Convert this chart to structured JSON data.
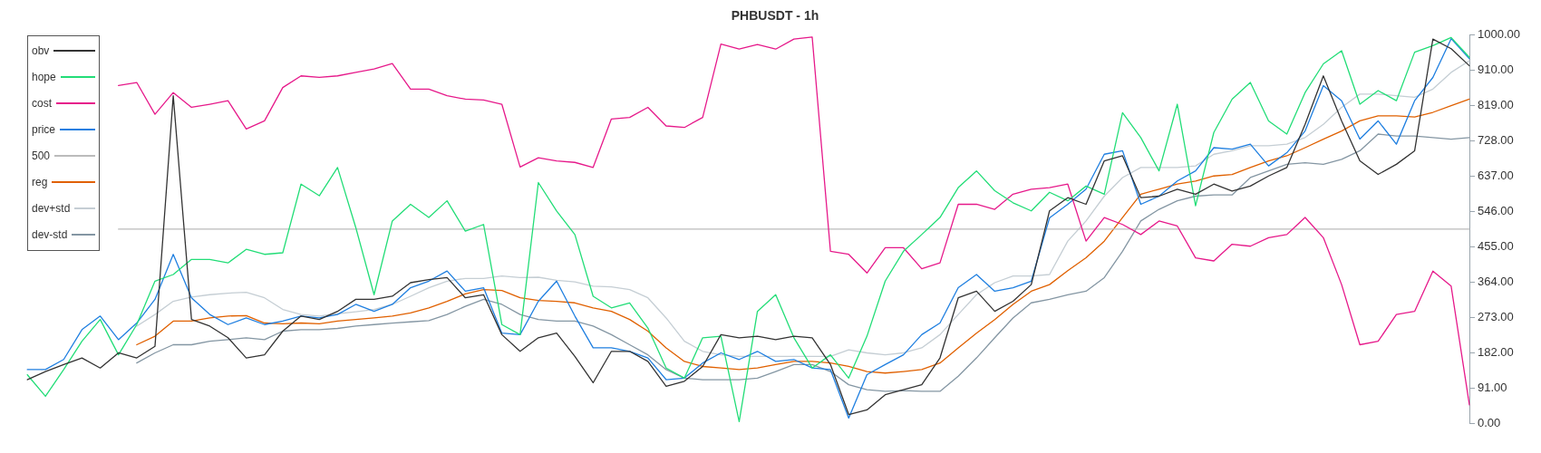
{
  "chart_data": {
    "type": "line",
    "title": "PHBUSDT - 1h",
    "categories": [
      null,
      null,
      null,
      null,
      null,
      null,
      null,
      null,
      null,
      null,
      null,
      null,
      null,
      null,
      null,
      null,
      null,
      null,
      null,
      null,
      null,
      null,
      null,
      null,
      null,
      null,
      null,
      null,
      null,
      null,
      null,
      null,
      null,
      null,
      null,
      null,
      null,
      null,
      null,
      null,
      null,
      null,
      null,
      null,
      null,
      null,
      null,
      null,
      null,
      null,
      null,
      null,
      null,
      null,
      null,
      null,
      null,
      null,
      null,
      null,
      null,
      null,
      null,
      null,
      null,
      null,
      null,
      null,
      null,
      null,
      null,
      null,
      null,
      null,
      null,
      null,
      null,
      null,
      null,
      null
    ],
    "series": [
      {
        "name": "obv",
        "color": "#333333",
        "values": [
          112,
          133,
          151,
          168,
          142,
          181,
          168,
          198,
          844,
          267,
          250,
          220,
          168,
          176,
          237,
          276,
          267,
          288,
          319,
          319,
          327,
          362,
          370,
          375,
          323,
          331,
          228,
          185,
          220,
          232,
          172,
          104,
          185,
          185,
          159,
          95,
          108,
          146,
          228,
          220,
          224,
          215,
          224,
          220,
          151,
          22,
          34,
          73,
          86,
          99,
          168,
          323,
          340,
          288,
          314,
          357,
          547,
          581,
          564,
          676,
          689,
          581,
          585,
          603,
          590,
          616,
          598,
          611,
          637,
          659,
          770,
          895,
          779,
          676,
          641,
          667,
          702,
          990,
          965,
          921
        ]
      },
      {
        "name": "hope",
        "color": "#22dd77",
        "values": [
          125,
          69,
          138,
          211,
          267,
          176,
          254,
          366,
          383,
          422,
          422,
          413,
          448,
          435,
          439,
          616,
          586,
          659,
          504,
          331,
          521,
          564,
          530,
          573,
          495,
          512,
          254,
          228,
          620,
          547,
          486,
          327,
          297,
          310,
          245,
          142,
          116,
          220,
          224,
          4,
          288,
          331,
          220,
          142,
          176,
          116,
          224,
          366,
          443,
          486,
          530,
          607,
          650,
          599,
          568,
          547,
          595,
          573,
          611,
          590,
          800,
          736,
          650,
          822,
          560,
          749,
          835,
          878,
          779,
          745,
          852,
          926,
          960,
          822,
          857,
          831,
          956,
          973,
          994,
          943
        ]
      },
      {
        "name": "cost",
        "color": "#e6198a",
        "values": [
          null,
          null,
          null,
          null,
          null,
          870,
          878,
          796,
          852,
          814,
          822,
          831,
          758,
          779,
          865,
          895,
          891,
          895,
          904,
          913,
          927,
          861,
          861,
          844,
          835,
          833,
          822,
          660,
          684,
          676,
          672,
          659,
          784,
          788,
          814,
          766,
          762,
          788,
          977,
          964,
          976,
          964,
          990,
          995,
          443,
          435,
          387,
          452,
          452,
          398,
          413,
          564,
          564,
          551,
          590,
          603,
          607,
          616,
          469,
          530,
          512,
          486,
          521,
          508,
          426,
          418,
          461,
          456,
          478,
          486,
          530,
          478,
          357,
          202,
          211,
          280,
          288,
          392,
          353,
          47
        ]
      },
      {
        "name": "price",
        "color": "#1f7fe0",
        "values": [
          138,
          138,
          164,
          241,
          276,
          215,
          258,
          319,
          435,
          323,
          280,
          254,
          271,
          254,
          263,
          276,
          271,
          280,
          306,
          288,
          306,
          349,
          366,
          392,
          340,
          349,
          232,
          228,
          314,
          366,
          276,
          194,
          194,
          185,
          168,
          112,
          116,
          155,
          181,
          164,
          185,
          159,
          164,
          142,
          138,
          13,
          125,
          151,
          176,
          228,
          258,
          349,
          383,
          340,
          349,
          366,
          529,
          564,
          603,
          693,
          702,
          564,
          585,
          624,
          650,
          710,
          706,
          719,
          663,
          697,
          753,
          870,
          831,
          732,
          779,
          719,
          831,
          891,
          991,
          939
        ]
      },
      {
        "name": "500",
        "color": "#bbbbbb",
        "values": [
          null,
          null,
          null,
          null,
          null,
          500,
          500,
          500,
          500,
          500,
          500,
          500,
          500,
          500,
          500,
          500,
          500,
          500,
          500,
          500,
          500,
          500,
          500,
          500,
          500,
          500,
          500,
          500,
          500,
          500,
          500,
          500,
          500,
          500,
          500,
          500,
          500,
          500,
          500,
          500,
          500,
          500,
          500,
          500,
          500,
          500,
          500,
          500,
          500,
          500,
          500,
          500,
          500,
          500,
          500,
          500,
          500,
          500,
          500,
          500,
          500,
          500,
          500,
          500,
          500,
          500,
          500,
          500,
          500,
          500,
          500,
          500,
          500,
          500,
          500,
          500,
          500,
          500,
          500,
          500
        ]
      },
      {
        "name": "reg",
        "color": "#e06000",
        "values": [
          null,
          null,
          null,
          null,
          null,
          null,
          202,
          224,
          263,
          263,
          271,
          276,
          277,
          258,
          256,
          258,
          256,
          263,
          267,
          271,
          276,
          284,
          297,
          314,
          333,
          344,
          342,
          323,
          316,
          314,
          310,
          297,
          288,
          267,
          237,
          194,
          159,
          146,
          142,
          138,
          142,
          151,
          159,
          159,
          155,
          146,
          133,
          129,
          133,
          138,
          155,
          194,
          232,
          267,
          306,
          340,
          357,
          393,
          426,
          469,
          530,
          590,
          603,
          616,
          624,
          637,
          641,
          659,
          676,
          689,
          710,
          732,
          753,
          779,
          792,
          792,
          789,
          801,
          818,
          835
        ]
      },
      {
        "name": "dev+std",
        "color": "#c5ced4",
        "values": [
          null,
          null,
          null,
          null,
          null,
          null,
          250,
          280,
          314,
          325,
          331,
          335,
          337,
          323,
          293,
          280,
          276,
          282,
          287,
          293,
          306,
          327,
          349,
          366,
          373,
          373,
          379,
          375,
          376,
          368,
          364,
          353,
          351,
          344,
          323,
          271,
          211,
          185,
          176,
          172,
          172,
          172,
          172,
          172,
          172,
          189,
          181,
          176,
          181,
          194,
          228,
          280,
          331,
          362,
          379,
          379,
          383,
          469,
          521,
          585,
          633,
          659,
          659,
          659,
          663,
          693,
          702,
          715,
          715,
          719,
          736,
          770,
          814,
          848,
          848,
          844,
          840,
          861,
          904,
          934
        ]
      },
      {
        "name": "dev-std",
        "color": "#8496a3",
        "values": [
          null,
          null,
          null,
          null,
          null,
          null,
          155,
          181,
          202,
          202,
          211,
          215,
          220,
          215,
          237,
          241,
          241,
          244,
          250,
          254,
          258,
          261,
          264,
          280,
          301,
          319,
          306,
          280,
          267,
          263,
          263,
          250,
          228,
          202,
          176,
          138,
          116,
          112,
          112,
          112,
          116,
          133,
          151,
          151,
          133,
          99,
          86,
          82,
          84,
          82,
          82,
          121,
          168,
          220,
          271,
          310,
          319,
          331,
          340,
          375,
          443,
          521,
          551,
          573,
          585,
          588,
          588,
          633,
          650,
          667,
          671,
          667,
          680,
          702,
          745,
          740,
          740,
          736,
          732,
          736
        ]
      }
    ],
    "ylim": [
      0,
      1000
    ],
    "yticks": [
      {
        "value": 0,
        "label": "0.00"
      },
      {
        "value": 91,
        "label": "91.00"
      },
      {
        "value": 182,
        "label": "182.00"
      },
      {
        "value": 273,
        "label": "273.00"
      },
      {
        "value": 364,
        "label": "364.00"
      },
      {
        "value": 455,
        "label": "455.00"
      },
      {
        "value": 546,
        "label": "546.00"
      },
      {
        "value": 637,
        "label": "637.00"
      },
      {
        "value": 728,
        "label": "728.00"
      },
      {
        "value": 819,
        "label": "819.00"
      },
      {
        "value": 910,
        "label": "910.00"
      },
      {
        "value": 1000,
        "label": "1000.00"
      }
    ],
    "tick_labels": "y",
    "legend": "top left",
    "marker": "none",
    "line_style": "solid"
  }
}
